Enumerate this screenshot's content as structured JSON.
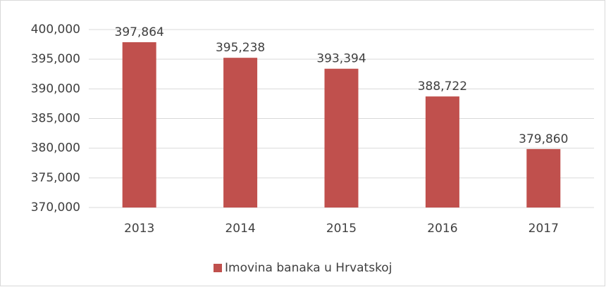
{
  "chart_data": {
    "type": "bar",
    "categories": [
      "2013",
      "2014",
      "2015",
      "2016",
      "2017"
    ],
    "series": [
      {
        "name": "Imovina banaka u Hrvatskoj",
        "color": "#c0504d",
        "values": [
          397864,
          395238,
          393394,
          388722,
          379860
        ],
        "value_labels": [
          "397,864",
          "395,238",
          "393,394",
          "388,722",
          "379,860"
        ]
      }
    ],
    "ylim": [
      370000,
      400000
    ],
    "yticks": [
      {
        "value": 370000,
        "label": "370,000"
      },
      {
        "value": 375000,
        "label": "375,000"
      },
      {
        "value": 380000,
        "label": "380,000"
      },
      {
        "value": 385000,
        "label": "385,000"
      },
      {
        "value": 390000,
        "label": "390,000"
      },
      {
        "value": 395000,
        "label": "395,000"
      },
      {
        "value": 400000,
        "label": "400,000"
      }
    ],
    "grid": true,
    "legend": "bottom"
  }
}
